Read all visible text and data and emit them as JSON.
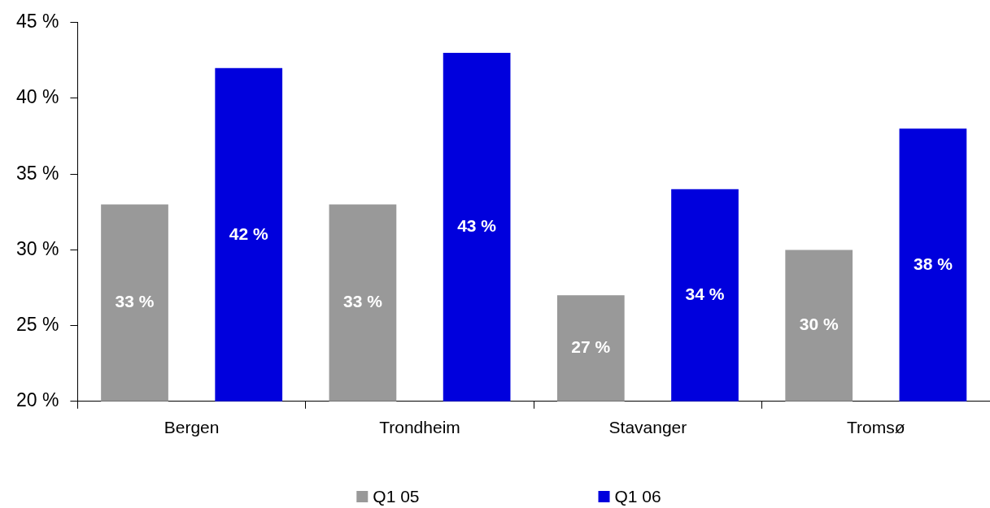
{
  "chart_data": {
    "type": "bar",
    "categories": [
      "Bergen",
      "Trondheim",
      "Stavanger",
      "Tromsø"
    ],
    "series": [
      {
        "name": "Q1 05",
        "color": "#999999",
        "values": [
          33,
          33,
          27,
          30
        ],
        "value_labels": [
          "33 %",
          "33 %",
          "27 %",
          "30 %"
        ]
      },
      {
        "name": "Q1 06",
        "color": "#0000dd",
        "values": [
          42,
          43,
          34,
          38
        ],
        "value_labels": [
          "42 %",
          "43 %",
          "34 %",
          "38 %"
        ]
      }
    ],
    "ylim": [
      20,
      45
    ],
    "yticks": [
      {
        "value": 20,
        "label": "20 %"
      },
      {
        "value": 25,
        "label": "25 %"
      },
      {
        "value": 30,
        "label": "30 %"
      },
      {
        "value": 35,
        "label": "35 %"
      },
      {
        "value": 40,
        "label": "40 %"
      },
      {
        "value": 45,
        "label": "45 %"
      }
    ],
    "legend": "bottom",
    "grid": false
  }
}
